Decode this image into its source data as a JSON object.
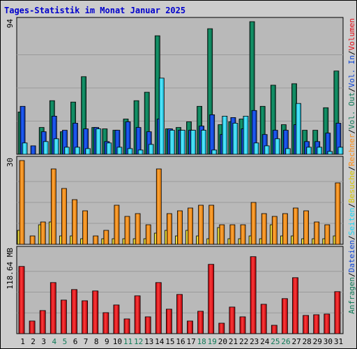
{
  "chart_data": {
    "type": "bar",
    "title": "Tages-Statistik im Monat Januar 2025",
    "colors": {
      "anfragen": "#0f7a57",
      "dateien": "#0d45d6",
      "seiten": "#19d6f5",
      "besuche": "#f5e61e",
      "rechner": "#ff8c10",
      "volumen": "#e8101a",
      "weekend_tick": "#0f7a57",
      "title": "#0000cc"
    },
    "days": [
      "1",
      "2",
      "3",
      "4",
      "5",
      "6",
      "7",
      "8",
      "9",
      "10",
      "11",
      "12",
      "13",
      "14",
      "15",
      "16",
      "17",
      "18",
      "19",
      "20",
      "21",
      "22",
      "23",
      "24",
      "25",
      "26",
      "27",
      "28",
      "29",
      "30",
      "31"
    ],
    "weekend_days": [
      "4",
      "5",
      "11",
      "12",
      "18",
      "19",
      "25",
      "26"
    ],
    "panels": [
      {
        "max_label": "94",
        "max": 94,
        "series": [
          {
            "name": "Anfragen",
            "values": [
              30,
              0,
              19,
              38,
              16,
              37,
              55,
              19,
              18,
              17,
              25,
              38,
              44,
              84,
              18,
              19,
              23,
              34,
              89,
              21,
              23,
              25,
              94,
              34,
              49,
              21,
              50,
              17,
              17,
              33,
              59
            ]
          },
          {
            "name": "Dateien",
            "values": [
              34,
              6,
              16,
              27,
              17,
              22,
              18,
              19,
              9,
              17,
              23,
              19,
              16,
              25,
              18,
              17,
              17,
              20,
              28,
              14,
              26,
              18,
              31,
              14,
              17,
              17,
              21,
              9,
              9,
              15,
              22
            ]
          },
          {
            "name": "Seiten",
            "values": [
              8,
              0,
              9,
              11,
              5,
              5,
              4,
              18,
              8,
              5,
              4,
              3,
              7,
              54,
              17,
              17,
              17,
              17,
              3,
              27,
              22,
              27,
              8,
              6,
              11,
              4,
              36,
              5,
              5,
              2,
              5
            ]
          }
        ]
      },
      {
        "max_label": "30",
        "max": 30,
        "series": [
          {
            "name": "Besuche",
            "values": [
              5,
              0,
              7,
              8,
              3,
              3,
              2,
              0,
              2,
              2,
              2,
              2,
              2,
              4,
              5,
              3,
              5,
              3,
              2,
              6,
              2,
              2,
              3,
              2,
              7,
              3,
              3,
              2,
              2,
              2,
              3
            ]
          },
          {
            "name": "Rechner",
            "values": [
              30,
              3,
              8,
              27,
              20,
              16,
              12,
              3,
              5,
              14,
              10,
              11,
              7,
              27,
              11,
              12,
              13,
              14,
              14,
              7,
              7,
              7,
              15,
              11,
              10,
              11,
              13,
              12,
              8,
              7,
              22
            ]
          }
        ]
      },
      {
        "max_label": "118.64 MB",
        "max": 118.64,
        "series": [
          {
            "name": "Volumen",
            "values": [
              96,
              18,
              33,
              73,
              48,
              63,
              47,
              61,
              30,
              41,
              21,
              54,
              24,
              73,
              35,
              56,
              18,
              32,
              99,
              15,
              38,
              24,
              110,
              42,
              12,
              50,
              80,
              26,
              27,
              28,
              60
            ]
          }
        ]
      }
    ],
    "right_labels": [
      {
        "text": "Anfragen",
        "color": "#0f7a57"
      },
      {
        "text": "/",
        "color": "#000000"
      },
      {
        "text": "Dateien",
        "color": "#0d45d6"
      },
      {
        "text": "/",
        "color": "#000000"
      },
      {
        "text": "Seiten",
        "color": "#19d6f5"
      },
      {
        "text": "/",
        "color": "#000000"
      },
      {
        "text": "Besuche",
        "color": "#d8c800"
      },
      {
        "text": "/",
        "color": "#000000"
      },
      {
        "text": "Rechner",
        "color": "#ff8c10"
      },
      {
        "text": "/",
        "color": "#000000"
      },
      {
        "text": "Vol. Out",
        "color": "#0f7a57"
      },
      {
        "text": "/",
        "color": "#000000"
      },
      {
        "text": "Vol. In",
        "color": "#0d45d6"
      },
      {
        "text": "/",
        "color": "#000000"
      },
      {
        "text": "Volumen",
        "color": "#e8101a"
      }
    ]
  }
}
